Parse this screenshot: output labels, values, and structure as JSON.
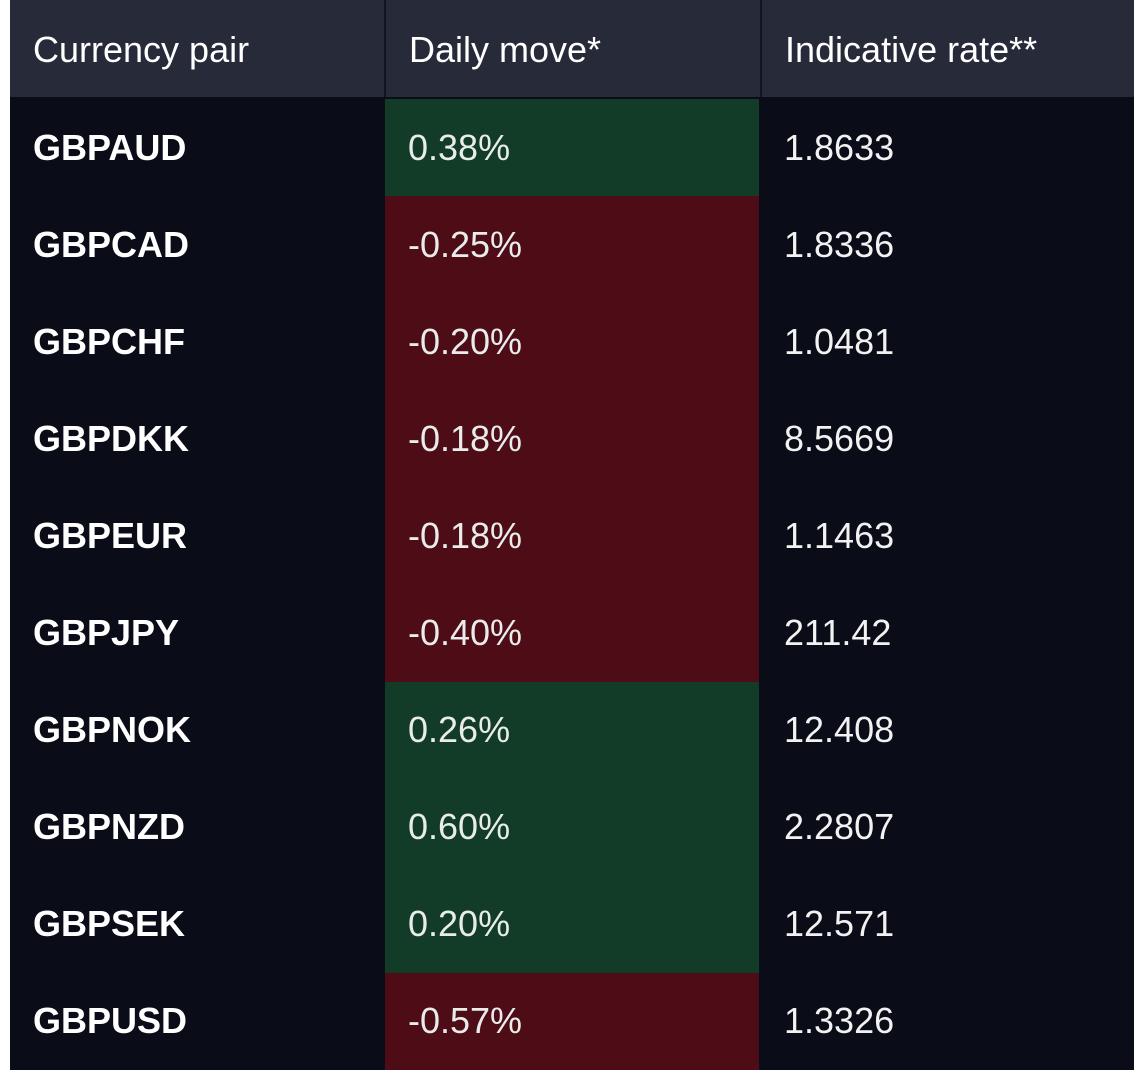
{
  "colors": {
    "table_background": "#0a0c18",
    "header_background": "#272a38",
    "positive_cell": "#123b28",
    "negative_cell": "#4e0c16",
    "text": "#ffffff"
  },
  "header": {
    "pair": "Currency pair",
    "move": "Daily move*",
    "rate": "Indicative rate**"
  },
  "rows": [
    {
      "pair": "GBPAUD",
      "move": "0.38%",
      "direction": "positive",
      "rate": "1.8633"
    },
    {
      "pair": "GBPCAD",
      "move": "-0.25%",
      "direction": "negative",
      "rate": "1.8336"
    },
    {
      "pair": "GBPCHF",
      "move": "-0.20%",
      "direction": "negative",
      "rate": "1.0481"
    },
    {
      "pair": "GBPDKK",
      "move": "-0.18%",
      "direction": "negative",
      "rate": "8.5669"
    },
    {
      "pair": "GBPEUR",
      "move": "-0.18%",
      "direction": "negative",
      "rate": "1.1463"
    },
    {
      "pair": "GBPJPY",
      "move": "-0.40%",
      "direction": "negative",
      "rate": "211.42"
    },
    {
      "pair": "GBPNOK",
      "move": "0.26%",
      "direction": "positive",
      "rate": "12.408"
    },
    {
      "pair": "GBPNZD",
      "move": "0.60%",
      "direction": "positive",
      "rate": "2.2807"
    },
    {
      "pair": "GBPSEK",
      "move": "0.20%",
      "direction": "positive",
      "rate": "12.571"
    },
    {
      "pair": "GBPUSD",
      "move": "-0.57%",
      "direction": "negative",
      "rate": "1.3326"
    }
  ]
}
